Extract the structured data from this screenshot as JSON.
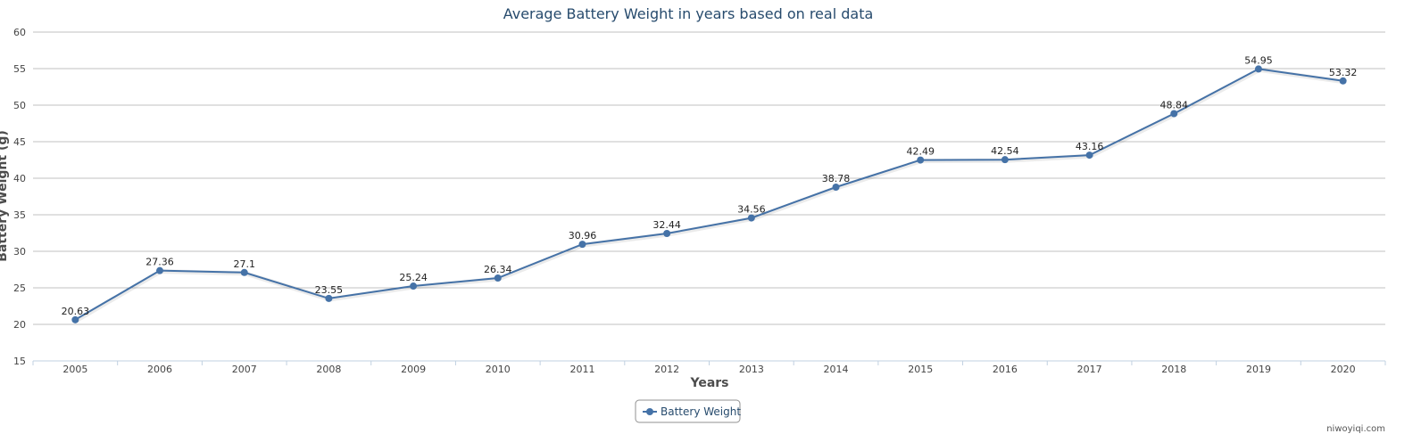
{
  "chart_data": {
    "type": "line",
    "title": "Average Battery Weight in years based on real data",
    "xlabel": "Years",
    "ylabel": "Battery Weight (g)",
    "ylim": [
      15,
      60
    ],
    "yticks": [
      "15",
      "20",
      "25",
      "30",
      "35",
      "40",
      "45",
      "50",
      "55",
      "60"
    ],
    "categories": [
      "2005",
      "2006",
      "2007",
      "2008",
      "2009",
      "2010",
      "2011",
      "2012",
      "2013",
      "2014",
      "2015",
      "2016",
      "2017",
      "2018",
      "2019",
      "2020"
    ],
    "series": [
      {
        "name": "Battery Weight",
        "values": [
          20.63,
          27.36,
          27.1,
          23.55,
          25.24,
          26.34,
          30.96,
          32.44,
          34.56,
          38.78,
          42.49,
          42.54,
          43.16,
          48.84,
          54.95,
          53.32
        ],
        "labels": [
          "20.63",
          "27.36",
          "27.1",
          "23.55",
          "25.24",
          "26.34",
          "30.96",
          "32.44",
          "34.56",
          "38.78",
          "42.49",
          "42.54",
          "43.16",
          "48.84",
          "54.95",
          "53.32"
        ]
      }
    ],
    "grid": true,
    "legend_position": "bottom-center",
    "colors": {
      "series": "#4572a7",
      "grid": "#c0c0c0",
      "title": "#274b6d"
    }
  },
  "credit": "niwoyiqi.com"
}
